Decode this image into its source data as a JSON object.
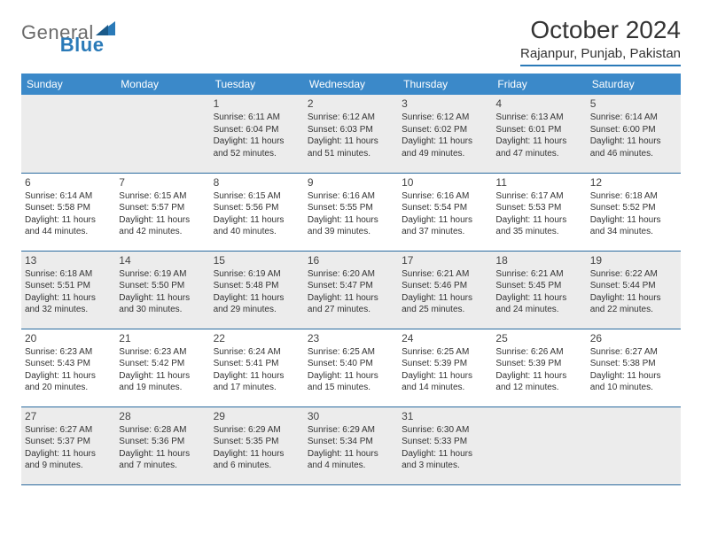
{
  "brand": {
    "part1": "General",
    "part2": "Blue"
  },
  "title": "October 2024",
  "location": "Rajanpur, Punjab, Pakistan",
  "colors": {
    "header_bg": "#3b89c9",
    "accent": "#2a7ab8",
    "row_border": "#2a6a9e",
    "gray_bg": "#ececec",
    "text": "#333333"
  },
  "day_headers": [
    "Sunday",
    "Monday",
    "Tuesday",
    "Wednesday",
    "Thursday",
    "Friday",
    "Saturday"
  ],
  "weeks": [
    [
      {
        "blank": true,
        "gray": true
      },
      {
        "blank": true,
        "gray": true
      },
      {
        "n": "1",
        "sr": "6:11 AM",
        "ss": "6:04 PM",
        "dl": "11 hours and 52 minutes.",
        "gray": true
      },
      {
        "n": "2",
        "sr": "6:12 AM",
        "ss": "6:03 PM",
        "dl": "11 hours and 51 minutes.",
        "gray": true
      },
      {
        "n": "3",
        "sr": "6:12 AM",
        "ss": "6:02 PM",
        "dl": "11 hours and 49 minutes.",
        "gray": true
      },
      {
        "n": "4",
        "sr": "6:13 AM",
        "ss": "6:01 PM",
        "dl": "11 hours and 47 minutes.",
        "gray": true
      },
      {
        "n": "5",
        "sr": "6:14 AM",
        "ss": "6:00 PM",
        "dl": "11 hours and 46 minutes.",
        "gray": true
      }
    ],
    [
      {
        "n": "6",
        "sr": "6:14 AM",
        "ss": "5:58 PM",
        "dl": "11 hours and 44 minutes."
      },
      {
        "n": "7",
        "sr": "6:15 AM",
        "ss": "5:57 PM",
        "dl": "11 hours and 42 minutes."
      },
      {
        "n": "8",
        "sr": "6:15 AM",
        "ss": "5:56 PM",
        "dl": "11 hours and 40 minutes."
      },
      {
        "n": "9",
        "sr": "6:16 AM",
        "ss": "5:55 PM",
        "dl": "11 hours and 39 minutes."
      },
      {
        "n": "10",
        "sr": "6:16 AM",
        "ss": "5:54 PM",
        "dl": "11 hours and 37 minutes."
      },
      {
        "n": "11",
        "sr": "6:17 AM",
        "ss": "5:53 PM",
        "dl": "11 hours and 35 minutes."
      },
      {
        "n": "12",
        "sr": "6:18 AM",
        "ss": "5:52 PM",
        "dl": "11 hours and 34 minutes."
      }
    ],
    [
      {
        "n": "13",
        "sr": "6:18 AM",
        "ss": "5:51 PM",
        "dl": "11 hours and 32 minutes.",
        "gray": true
      },
      {
        "n": "14",
        "sr": "6:19 AM",
        "ss": "5:50 PM",
        "dl": "11 hours and 30 minutes.",
        "gray": true
      },
      {
        "n": "15",
        "sr": "6:19 AM",
        "ss": "5:48 PM",
        "dl": "11 hours and 29 minutes.",
        "gray": true
      },
      {
        "n": "16",
        "sr": "6:20 AM",
        "ss": "5:47 PM",
        "dl": "11 hours and 27 minutes.",
        "gray": true
      },
      {
        "n": "17",
        "sr": "6:21 AM",
        "ss": "5:46 PM",
        "dl": "11 hours and 25 minutes.",
        "gray": true
      },
      {
        "n": "18",
        "sr": "6:21 AM",
        "ss": "5:45 PM",
        "dl": "11 hours and 24 minutes.",
        "gray": true
      },
      {
        "n": "19",
        "sr": "6:22 AM",
        "ss": "5:44 PM",
        "dl": "11 hours and 22 minutes.",
        "gray": true
      }
    ],
    [
      {
        "n": "20",
        "sr": "6:23 AM",
        "ss": "5:43 PM",
        "dl": "11 hours and 20 minutes."
      },
      {
        "n": "21",
        "sr": "6:23 AM",
        "ss": "5:42 PM",
        "dl": "11 hours and 19 minutes."
      },
      {
        "n": "22",
        "sr": "6:24 AM",
        "ss": "5:41 PM",
        "dl": "11 hours and 17 minutes."
      },
      {
        "n": "23",
        "sr": "6:25 AM",
        "ss": "5:40 PM",
        "dl": "11 hours and 15 minutes."
      },
      {
        "n": "24",
        "sr": "6:25 AM",
        "ss": "5:39 PM",
        "dl": "11 hours and 14 minutes."
      },
      {
        "n": "25",
        "sr": "6:26 AM",
        "ss": "5:39 PM",
        "dl": "11 hours and 12 minutes."
      },
      {
        "n": "26",
        "sr": "6:27 AM",
        "ss": "5:38 PM",
        "dl": "11 hours and 10 minutes."
      }
    ],
    [
      {
        "n": "27",
        "sr": "6:27 AM",
        "ss": "5:37 PM",
        "dl": "11 hours and 9 minutes.",
        "gray": true
      },
      {
        "n": "28",
        "sr": "6:28 AM",
        "ss": "5:36 PM",
        "dl": "11 hours and 7 minutes.",
        "gray": true
      },
      {
        "n": "29",
        "sr": "6:29 AM",
        "ss": "5:35 PM",
        "dl": "11 hours and 6 minutes.",
        "gray": true
      },
      {
        "n": "30",
        "sr": "6:29 AM",
        "ss": "5:34 PM",
        "dl": "11 hours and 4 minutes.",
        "gray": true
      },
      {
        "n": "31",
        "sr": "6:30 AM",
        "ss": "5:33 PM",
        "dl": "11 hours and 3 minutes.",
        "gray": true
      },
      {
        "blank": true,
        "gray": true
      },
      {
        "blank": true,
        "gray": true
      }
    ]
  ],
  "labels": {
    "sunrise": "Sunrise:",
    "sunset": "Sunset:",
    "daylight": "Daylight:"
  }
}
